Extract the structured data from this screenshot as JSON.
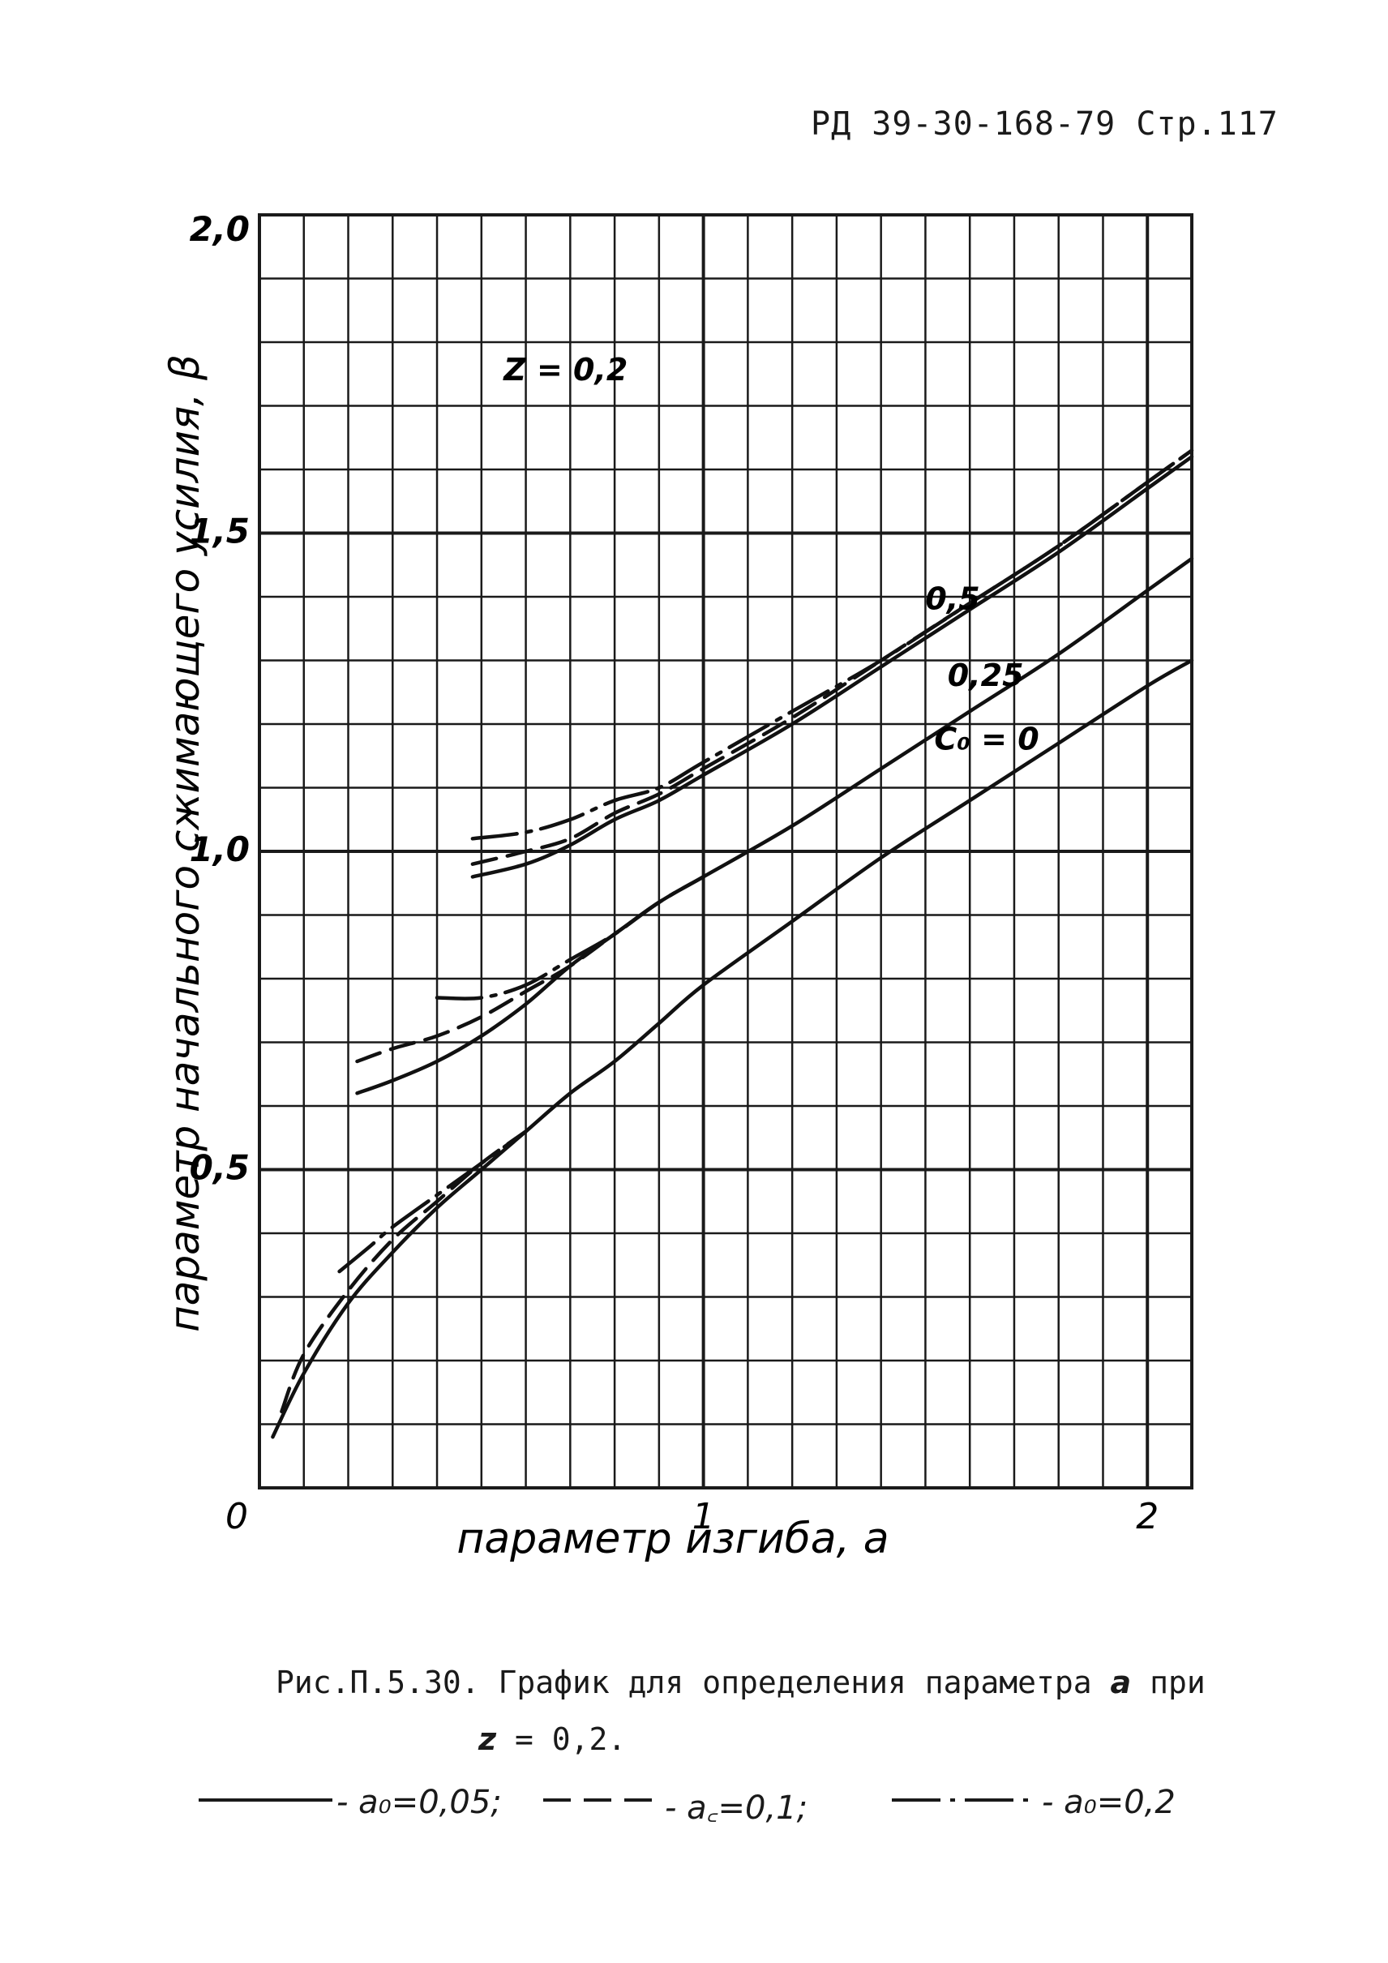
{
  "header": "РД 39-30-168-79 Стр.117",
  "chart_data": {
    "type": "line",
    "xlabel": "параметр изгиба, a",
    "ylabel": "параметр начального сжимающего усилия, β",
    "xlim": [
      0,
      2.1
    ],
    "ylim": [
      0,
      2.0
    ],
    "x_ticks": [
      {
        "value": 0,
        "label": "0"
      },
      {
        "value": 1,
        "label": "1"
      },
      {
        "value": 2,
        "label": "2"
      }
    ],
    "y_ticks": [
      {
        "value": 0.5,
        "label": "0,5"
      },
      {
        "value": 1.0,
        "label": "1,0"
      },
      {
        "value": 1.5,
        "label": "1,5"
      },
      {
        "value": 2.0,
        "label": "2,0"
      }
    ],
    "grid": true,
    "grid_x_step": 0.1,
    "grid_y_step": 0.1,
    "annotations": [
      {
        "text": "Z = 0,2",
        "x": 0.55,
        "y": 1.74
      },
      {
        "text": "0,5",
        "x": 1.5,
        "y": 1.38
      },
      {
        "text": "0,25",
        "x": 1.55,
        "y": 1.26
      },
      {
        "text": "C₀ = 0",
        "x": 1.52,
        "y": 1.16
      }
    ],
    "series": [
      {
        "group": "0,5",
        "style": "solid",
        "x": [
          0.48,
          0.6,
          0.7,
          0.8,
          0.9,
          1.0,
          1.2,
          1.4,
          1.6,
          1.8,
          2.0,
          2.1
        ],
        "y": [
          0.96,
          0.98,
          1.01,
          1.05,
          1.08,
          1.12,
          1.2,
          1.29,
          1.38,
          1.47,
          1.57,
          1.62
        ]
      },
      {
        "group": "0,5",
        "style": "dashed",
        "x": [
          0.48,
          0.6,
          0.7,
          0.8,
          0.9,
          1.0,
          1.2,
          1.4,
          1.6,
          1.8,
          2.0,
          2.1
        ],
        "y": [
          0.98,
          1.0,
          1.02,
          1.06,
          1.09,
          1.13,
          1.21,
          1.3,
          1.39,
          1.48,
          1.58,
          1.63
        ]
      },
      {
        "group": "0,5",
        "style": "dashdot",
        "x": [
          0.48,
          0.6,
          0.7,
          0.8,
          0.9,
          1.0,
          1.2,
          1.4,
          1.6,
          1.8,
          2.0,
          2.1
        ],
        "y": [
          1.02,
          1.03,
          1.05,
          1.08,
          1.1,
          1.14,
          1.22,
          1.3,
          1.39,
          1.48,
          1.58,
          1.63
        ]
      },
      {
        "group": "0,25",
        "style": "solid",
        "x": [
          0.22,
          0.3,
          0.4,
          0.5,
          0.6,
          0.7,
          0.8,
          0.9,
          1.0,
          1.2,
          1.4,
          1.6,
          1.8,
          2.0,
          2.1
        ],
        "y": [
          0.62,
          0.64,
          0.67,
          0.71,
          0.76,
          0.82,
          0.87,
          0.92,
          0.96,
          1.04,
          1.13,
          1.22,
          1.31,
          1.41,
          1.46
        ]
      },
      {
        "group": "0,25",
        "style": "dashed",
        "x": [
          0.22,
          0.3,
          0.4,
          0.5,
          0.6,
          0.7,
          0.8,
          0.9,
          1.0
        ],
        "y": [
          0.67,
          0.69,
          0.71,
          0.74,
          0.78,
          0.82,
          0.87,
          0.92,
          0.96
        ]
      },
      {
        "group": "0,25",
        "style": "dashdot",
        "x": [
          0.4,
          0.5,
          0.6,
          0.7,
          0.8,
          0.9,
          1.0
        ],
        "y": [
          0.77,
          0.77,
          0.79,
          0.83,
          0.87,
          0.92,
          0.96
        ]
      },
      {
        "group": "C₀ = 0",
        "style": "solid",
        "x": [
          0.03,
          0.1,
          0.2,
          0.3,
          0.4,
          0.5,
          0.6,
          0.7,
          0.8,
          0.9,
          1.0,
          1.2,
          1.4,
          1.6,
          1.8,
          2.0,
          2.1
        ],
        "y": [
          0.08,
          0.18,
          0.29,
          0.37,
          0.44,
          0.5,
          0.56,
          0.62,
          0.67,
          0.73,
          0.79,
          0.89,
          0.99,
          1.08,
          1.17,
          1.26,
          1.3
        ]
      },
      {
        "group": "C₀ = 0",
        "style": "dashed",
        "x": [
          0.05,
          0.1,
          0.2,
          0.3,
          0.4,
          0.5,
          0.6
        ],
        "y": [
          0.12,
          0.21,
          0.31,
          0.39,
          0.45,
          0.51,
          0.56
        ]
      },
      {
        "group": "C₀ = 0",
        "style": "dashdot",
        "x": [
          0.18,
          0.25,
          0.3,
          0.4,
          0.5,
          0.6
        ],
        "y": [
          0.34,
          0.38,
          0.41,
          0.46,
          0.51,
          0.56
        ]
      }
    ]
  },
  "caption": {
    "line1_prefix": "Рис.П.5.30. График для определения параметра",
    "line1_var": "a",
    "line1_suffix": "при",
    "line2_var": "z",
    "line2_rest": " = 0,2."
  },
  "legend": [
    {
      "style": "solid",
      "label": "- a₀=0,05;"
    },
    {
      "style": "dashed",
      "label": "- a꜀=0,1;"
    },
    {
      "style": "dashdot",
      "label": "- a₀=0,2"
    }
  ]
}
